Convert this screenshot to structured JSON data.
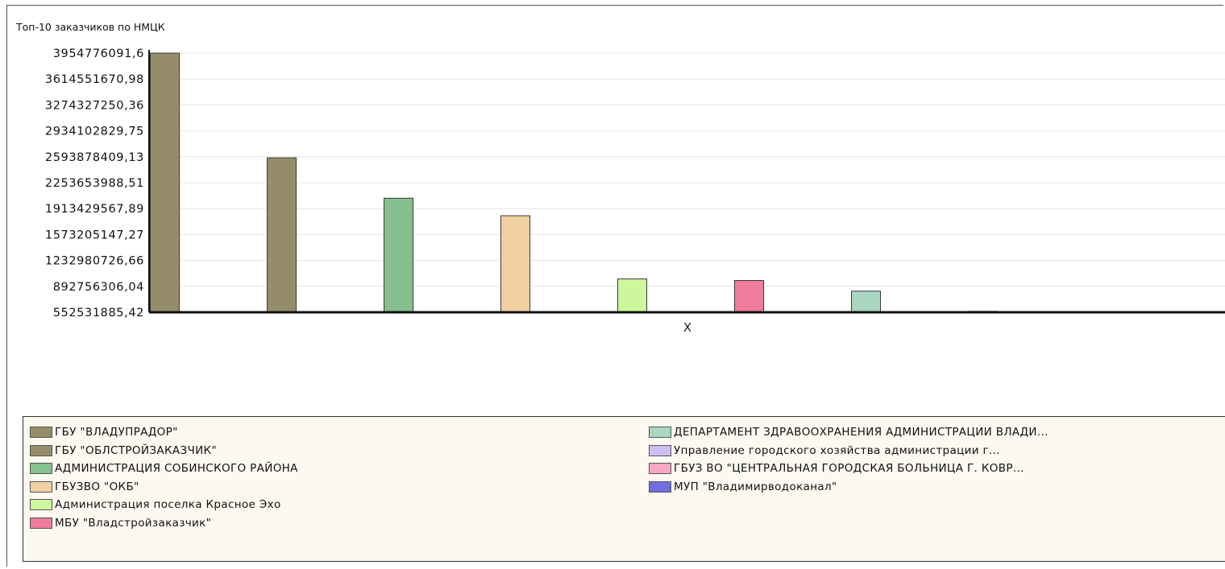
{
  "chart_data": {
    "type": "bar",
    "title": "Топ-10 заказчиков по НМЦК",
    "xlabel": "X",
    "ylabel": "",
    "ylim": [
      552531885.42,
      3954776091.6
    ],
    "yticks": [
      "3954776091,6",
      "3614551670,98",
      "3274327250,36",
      "2934102829,75",
      "2593878409,13",
      "2253653988,51",
      "1913429567,89",
      "1573205147,27",
      "1232980726,66",
      "892756306,04",
      "552531885,42"
    ],
    "grid": true,
    "legend_position": "bottom",
    "series": [
      {
        "name": "ГБУ \"ВЛАДУПРАДОР\"",
        "value": 3954776091.6,
        "color": "#958d6a"
      },
      {
        "name": "ГБУ \"ОБЛСТРОЙЗАКАЗЧИК\"",
        "value": 2580000000,
        "color": "#958d6a"
      },
      {
        "name": "АДМИНИСТРАЦИЯ СОБИНСКОГО РАЙОНА",
        "value": 2050000000,
        "color": "#84c18e"
      },
      {
        "name": "ГБУЗВО \"ОКБ\"",
        "value": 1820000000,
        "color": "#f0cfa1"
      },
      {
        "name": "Администрация поселка Красное Эхо",
        "value": 990000000,
        "color": "#cdf79c"
      },
      {
        "name": "МБУ \"Владстройзаказчик\"",
        "value": 970000000,
        "color": "#ef7b9d"
      },
      {
        "name": "ДЕПАРТАМЕНТ ЗДРАВООХРАНЕНИЯ АДМИНИСТРАЦИИ ВЛАДИ...",
        "value": 830000000,
        "color": "#a9d7c3"
      },
      {
        "name": "Управление городского хозяйства администрации г...",
        "value": 565000000,
        "color": "#cdbff0"
      },
      {
        "name": "ГБУЗ ВО \"ЦЕНТРАЛЬНАЯ ГОРОДСКАЯ БОЛЬНИЦА Г. КОВР...",
        "value": 552531885.42,
        "color": "#f4a9c4"
      },
      {
        "name": "МУП \"Владимирводоканал\"",
        "value": 552531885.42,
        "color": "#6f6fe0"
      }
    ]
  }
}
